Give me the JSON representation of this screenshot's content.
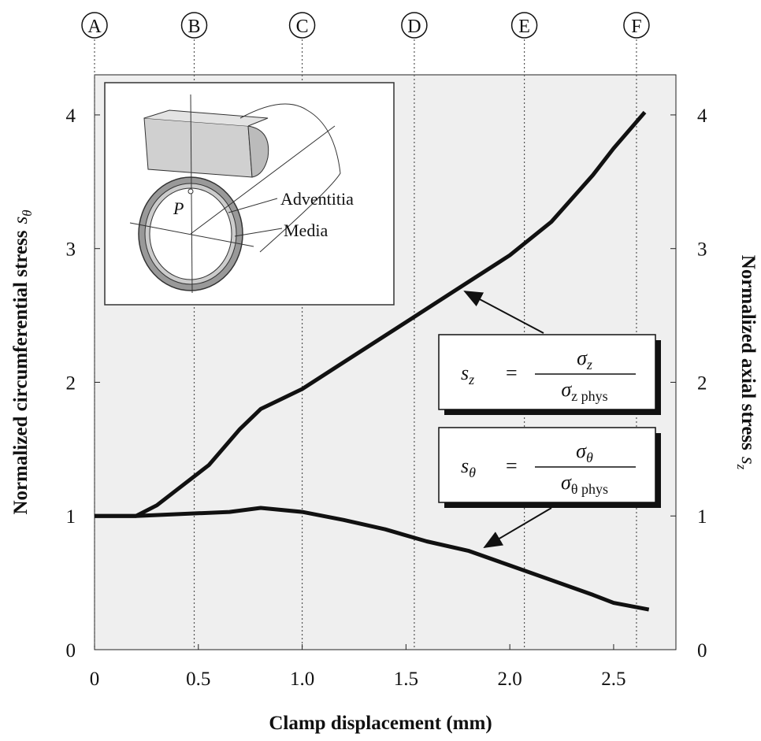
{
  "chart_data": {
    "type": "line",
    "x_label": "Clamp displacement (mm)",
    "y_label": {
      "text": "Normalized circumferential stress",
      "symbol": "s",
      "subscript": "θ"
    },
    "y2_label": {
      "text": "Normalized axial stress",
      "symbol": "s",
      "subscript": "z"
    },
    "xlim": [
      0,
      2.8
    ],
    "xticks": [
      0,
      0.5,
      {
        "value": 1.0,
        "label": "1.0"
      },
      1.5,
      {
        "value": 2.0,
        "label": "2.0"
      },
      2.5
    ],
    "ylim": [
      0,
      4.3
    ],
    "yticks": [
      0,
      1,
      2,
      3,
      4
    ],
    "y2lim": [
      0,
      4.3
    ],
    "y2ticks": [
      0,
      1,
      2,
      3,
      4
    ],
    "markers": [
      {
        "label": "A",
        "x": 0
      },
      {
        "label": "B",
        "x": 0.48
      },
      {
        "label": "C",
        "x": 1.0
      },
      {
        "label": "D",
        "x": 1.54
      },
      {
        "label": "E",
        "x": 2.07
      },
      {
        "label": "F",
        "x": 2.61
      }
    ],
    "inset_labels": [
      "P",
      "Adventitia",
      "Media"
    ],
    "series": [
      {
        "name": {
          "lhs": "s",
          "lhs_sub": "z",
          "eq": "=",
          "num": "σ",
          "num_sub": "z",
          "den": "σ",
          "den_sub": "z phys"
        },
        "color": "#111111",
        "axis": "y2",
        "x": [
          0,
          0.2,
          0.3,
          0.4,
          0.55,
          0.7,
          0.8,
          1.0,
          1.2,
          1.5,
          1.8,
          2.0,
          2.2,
          2.4,
          2.5,
          2.65
        ],
        "values": [
          1,
          1,
          1.08,
          1.2,
          1.38,
          1.65,
          1.8,
          1.95,
          2.15,
          2.45,
          2.75,
          2.95,
          3.2,
          3.55,
          3.75,
          4.02
        ]
      },
      {
        "name": {
          "lhs": "s",
          "lhs_sub": "θ",
          "eq": "=",
          "num": "σ",
          "num_sub": "θ",
          "den": "σ",
          "den_sub": "θ phys"
        },
        "color": "#111111",
        "x": [
          0,
          0.2,
          0.5,
          0.65,
          0.8,
          1.0,
          1.2,
          1.4,
          1.6,
          1.8,
          2.0,
          2.2,
          2.4,
          2.5,
          2.67
        ],
        "values": [
          1,
          1,
          1.02,
          1.03,
          1.06,
          1.03,
          0.97,
          0.9,
          0.81,
          0.74,
          0.63,
          0.52,
          0.41,
          0.35,
          0.3
        ]
      }
    ]
  }
}
